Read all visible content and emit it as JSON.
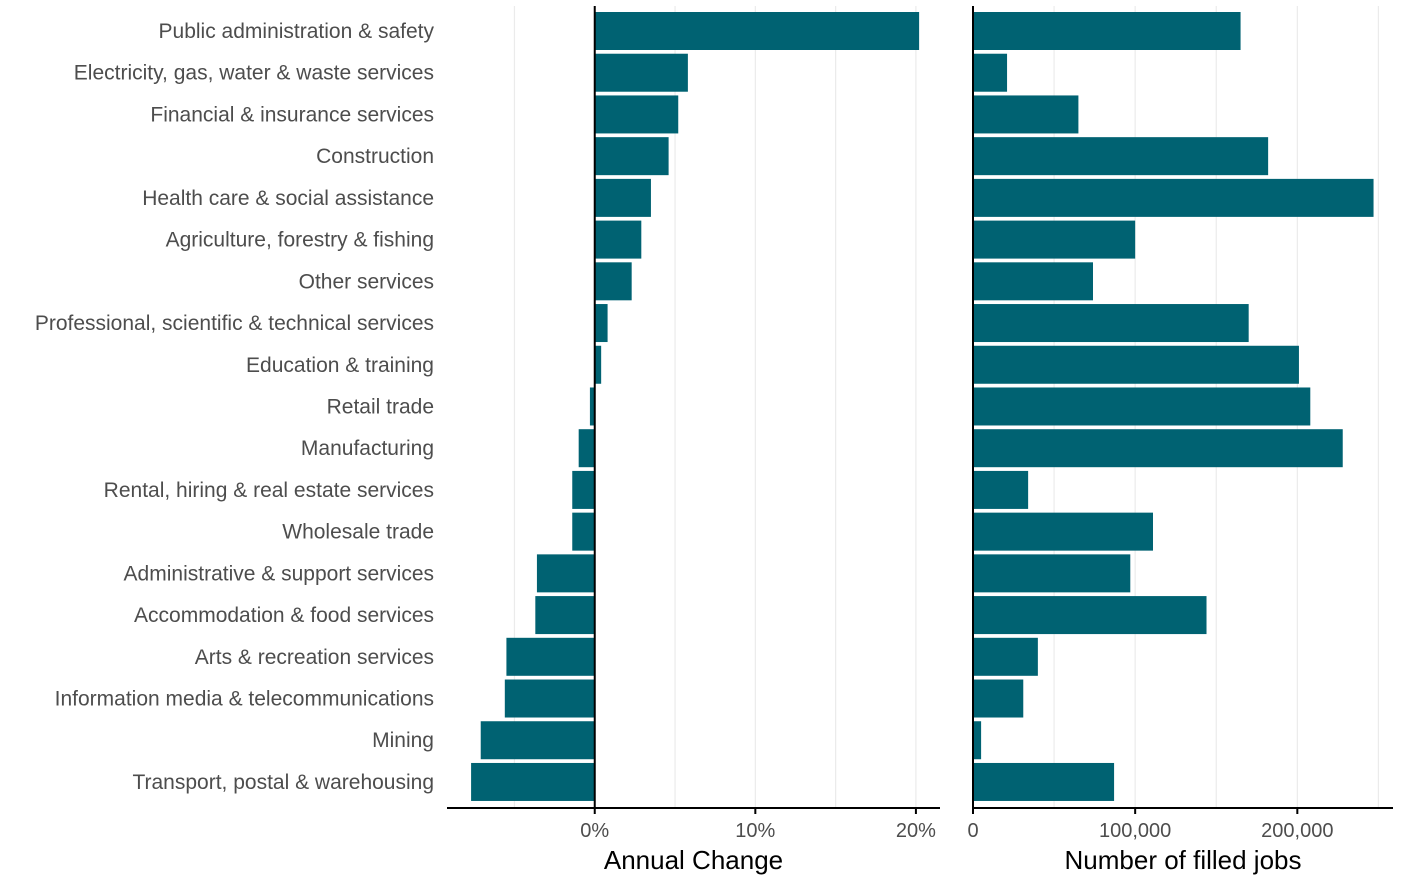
{
  "chart_data": {
    "type": "bar",
    "orientation": "horizontal",
    "bar_color": "#006272",
    "categories": [
      "Public administration & safety",
      "Electricity, gas, water & waste services",
      "Financial & insurance services",
      "Construction",
      "Health care & social assistance",
      "Agriculture, forestry & fishing",
      "Other services",
      "Professional, scientific & technical services",
      "Education & training",
      "Retail trade",
      "Manufacturing",
      "Rental, hiring & real estate services",
      "Wholesale trade",
      "Administrative & support services",
      "Accommodation & food services",
      "Arts & recreation services",
      "Information media & telecommunications",
      "Mining",
      "Transport, postal & warehousing"
    ],
    "panels": [
      {
        "xlabel": "Annual Change",
        "value_format": "percent",
        "xlim": [
          -9.2,
          21.5
        ],
        "ticks": [
          0,
          10,
          20
        ],
        "tick_labels": [
          "0%",
          "10%",
          "20%"
        ],
        "minor_gridlines": [
          -5,
          5,
          15
        ],
        "values": [
          20.2,
          5.8,
          5.2,
          4.6,
          3.5,
          2.9,
          2.3,
          0.8,
          0.4,
          -0.3,
          -1.0,
          -1.4,
          -1.4,
          -3.6,
          -3.7,
          -5.5,
          -5.6,
          -7.1,
          -7.7
        ]
      },
      {
        "xlabel": "Number of filled jobs",
        "value_format": "count",
        "xlim": [
          0,
          259000
        ],
        "ticks": [
          0,
          100000,
          200000
        ],
        "tick_labels": [
          "0",
          "100,000",
          "200,000"
        ],
        "minor_gridlines": [
          50000,
          150000,
          250000
        ],
        "values": [
          165000,
          21000,
          65000,
          182000,
          247000,
          100000,
          74000,
          170000,
          201000,
          208000,
          228000,
          34000,
          111000,
          97000,
          144000,
          40000,
          31000,
          5000,
          87000
        ]
      }
    ],
    "grid": true
  }
}
